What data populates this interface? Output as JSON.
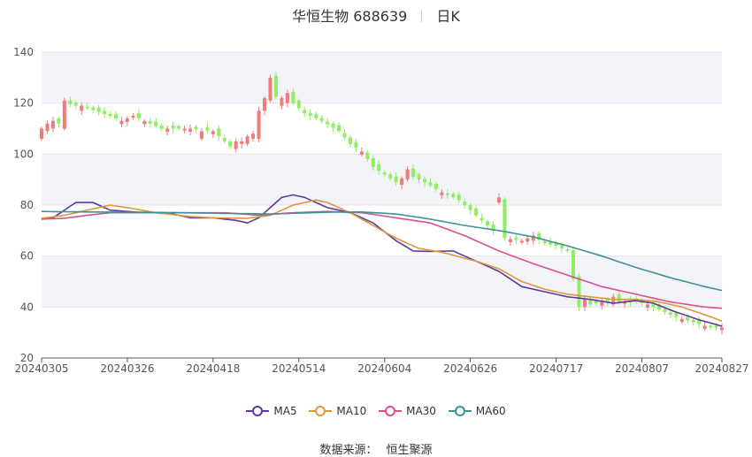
{
  "header": {
    "title": "华恒生物 688639",
    "period": "日K"
  },
  "source": {
    "label": "数据来源：",
    "value": "恒生聚源"
  },
  "colors": {
    "up": "#f07b7b",
    "down": "#90ee60",
    "MA5": "#5a3a9a",
    "MA10": "#e0953d",
    "MA30": "#d9508f",
    "MA60": "#3b9395",
    "band": "#f3f4fa",
    "grid": "#e6e6e6",
    "axis": "#555555"
  },
  "chart_data": {
    "type": "candlestick",
    "ylim": [
      20,
      140
    ],
    "yticks": [
      20,
      40,
      60,
      80,
      100,
      120,
      140
    ],
    "xtick_labels": [
      "20240305",
      "20240326",
      "20240418",
      "20240514",
      "20240604",
      "20240626",
      "20240717",
      "20240807",
      "20240827"
    ],
    "xtick_index": [
      0,
      15,
      30,
      45,
      60,
      75,
      90,
      105,
      119
    ],
    "n_days": 120,
    "close_anchors": [
      [
        0,
        109
      ],
      [
        3,
        112
      ],
      [
        4,
        120
      ],
      [
        8,
        118
      ],
      [
        12,
        115
      ],
      [
        14,
        113
      ],
      [
        16,
        115
      ],
      [
        19,
        112
      ],
      [
        21,
        110
      ],
      [
        26,
        110
      ],
      [
        30,
        109
      ],
      [
        33,
        103
      ],
      [
        35,
        105
      ],
      [
        37,
        107
      ],
      [
        38,
        117
      ],
      [
        40,
        124
      ],
      [
        42,
        121
      ],
      [
        44,
        120
      ],
      [
        46,
        116
      ],
      [
        49,
        113
      ],
      [
        52,
        109
      ],
      [
        54,
        104
      ],
      [
        56,
        101
      ],
      [
        58,
        95
      ],
      [
        60,
        92
      ],
      [
        62,
        89
      ],
      [
        64,
        92
      ],
      [
        67,
        89
      ],
      [
        70,
        85
      ],
      [
        73,
        82
      ],
      [
        75,
        78
      ],
      [
        77,
        74
      ],
      [
        79,
        70
      ],
      [
        81,
        67
      ],
      [
        84,
        66
      ],
      [
        86,
        68
      ],
      [
        88,
        65
      ],
      [
        90,
        64
      ],
      [
        92,
        62
      ],
      [
        94,
        40
      ],
      [
        96,
        41
      ],
      [
        98,
        42
      ],
      [
        100,
        42
      ],
      [
        104,
        42
      ],
      [
        106,
        41
      ],
      [
        108,
        39
      ],
      [
        111,
        36
      ],
      [
        114,
        34
      ],
      [
        117,
        32
      ],
      [
        119,
        32
      ]
    ],
    "candles": [
      {
        "i": 0,
        "o": 106,
        "c": 110
      },
      {
        "i": 1,
        "o": 109,
        "c": 112
      },
      {
        "i": 2,
        "o": 110,
        "c": 113
      },
      {
        "i": 4,
        "o": 110,
        "c": 121
      },
      {
        "i": 7,
        "o": 117,
        "c": 119
      },
      {
        "i": 28,
        "o": 106,
        "c": 109
      },
      {
        "i": 34,
        "o": 102,
        "c": 105
      },
      {
        "i": 36,
        "o": 104,
        "c": 107
      },
      {
        "i": 37,
        "o": 106,
        "c": 108
      },
      {
        "i": 38,
        "o": 106,
        "c": 117
      },
      {
        "i": 39,
        "o": 117,
        "c": 122
      },
      {
        "i": 40,
        "o": 121,
        "c": 130
      },
      {
        "i": 42,
        "o": 119,
        "c": 122
      },
      {
        "i": 43,
        "o": 120,
        "c": 124
      },
      {
        "i": 64,
        "o": 90,
        "c": 94
      },
      {
        "i": 80,
        "o": 81,
        "c": 83
      },
      {
        "i": 86,
        "o": 66,
        "c": 68
      },
      {
        "i": 95,
        "o": 40,
        "c": 43
      },
      {
        "i": 100,
        "o": 41,
        "c": 44
      }
    ],
    "series": [
      {
        "name": "MA5",
        "anchors": [
          [
            0,
            74.5
          ],
          [
            2,
            75
          ],
          [
            4,
            78
          ],
          [
            6,
            81
          ],
          [
            9,
            81
          ],
          [
            12,
            78
          ],
          [
            18,
            77
          ],
          [
            22,
            77
          ],
          [
            26,
            75
          ],
          [
            30,
            75
          ],
          [
            34,
            74
          ],
          [
            36,
            73
          ],
          [
            38,
            75
          ],
          [
            40,
            79
          ],
          [
            42,
            83
          ],
          [
            44,
            84
          ],
          [
            46,
            83
          ],
          [
            48,
            81
          ],
          [
            50,
            79
          ],
          [
            54,
            77
          ],
          [
            58,
            73
          ],
          [
            62,
            66
          ],
          [
            65,
            62
          ],
          [
            68,
            61.8
          ],
          [
            72,
            62
          ],
          [
            76,
            58
          ],
          [
            80,
            54
          ],
          [
            84,
            48
          ],
          [
            88,
            46
          ],
          [
            92,
            44
          ],
          [
            96,
            43
          ],
          [
            100,
            41.5
          ],
          [
            104,
            42.5
          ],
          [
            107,
            41.5
          ],
          [
            111,
            38
          ],
          [
            115,
            35
          ],
          [
            119,
            32.5
          ]
        ]
      },
      {
        "name": "MA10",
        "anchors": [
          [
            0,
            74.8
          ],
          [
            4,
            76
          ],
          [
            8,
            78
          ],
          [
            12,
            80
          ],
          [
            15,
            79
          ],
          [
            20,
            77
          ],
          [
            26,
            75.5
          ],
          [
            30,
            75
          ],
          [
            36,
            74.8
          ],
          [
            40,
            76
          ],
          [
            44,
            80
          ],
          [
            48,
            82
          ],
          [
            50,
            81
          ],
          [
            54,
            77
          ],
          [
            58,
            72
          ],
          [
            62,
            67
          ],
          [
            66,
            63
          ],
          [
            70,
            61.5
          ],
          [
            76,
            58
          ],
          [
            80,
            55
          ],
          [
            84,
            50
          ],
          [
            88,
            47
          ],
          [
            92,
            45
          ],
          [
            96,
            44
          ],
          [
            100,
            43
          ],
          [
            104,
            43
          ],
          [
            108,
            42
          ],
          [
            112,
            40
          ],
          [
            116,
            37
          ],
          [
            119,
            34.5
          ]
        ]
      },
      {
        "name": "MA30",
        "anchors": [
          [
            0,
            74.5
          ],
          [
            4,
            74.8
          ],
          [
            8,
            76
          ],
          [
            12,
            77
          ],
          [
            18,
            77
          ],
          [
            26,
            77
          ],
          [
            32,
            77
          ],
          [
            38,
            76
          ],
          [
            44,
            77
          ],
          [
            50,
            77.5
          ],
          [
            56,
            77
          ],
          [
            62,
            75
          ],
          [
            68,
            73
          ],
          [
            74,
            68
          ],
          [
            80,
            62
          ],
          [
            86,
            57
          ],
          [
            92,
            52.5
          ],
          [
            98,
            48
          ],
          [
            104,
            45
          ],
          [
            110,
            42
          ],
          [
            116,
            40
          ],
          [
            119,
            39.5
          ]
        ]
      },
      {
        "name": "MA60",
        "anchors": [
          [
            0,
            77.5
          ],
          [
            8,
            77.3
          ],
          [
            18,
            77.2
          ],
          [
            30,
            76.8
          ],
          [
            40,
            76.5
          ],
          [
            50,
            77.2
          ],
          [
            56,
            77.3
          ],
          [
            62,
            76.5
          ],
          [
            68,
            74.5
          ],
          [
            74,
            72
          ],
          [
            80,
            70
          ],
          [
            86,
            67.5
          ],
          [
            92,
            64
          ],
          [
            98,
            60
          ],
          [
            104,
            55.5
          ],
          [
            110,
            51.5
          ],
          [
            116,
            48
          ],
          [
            119,
            46.5
          ]
        ]
      }
    ]
  }
}
